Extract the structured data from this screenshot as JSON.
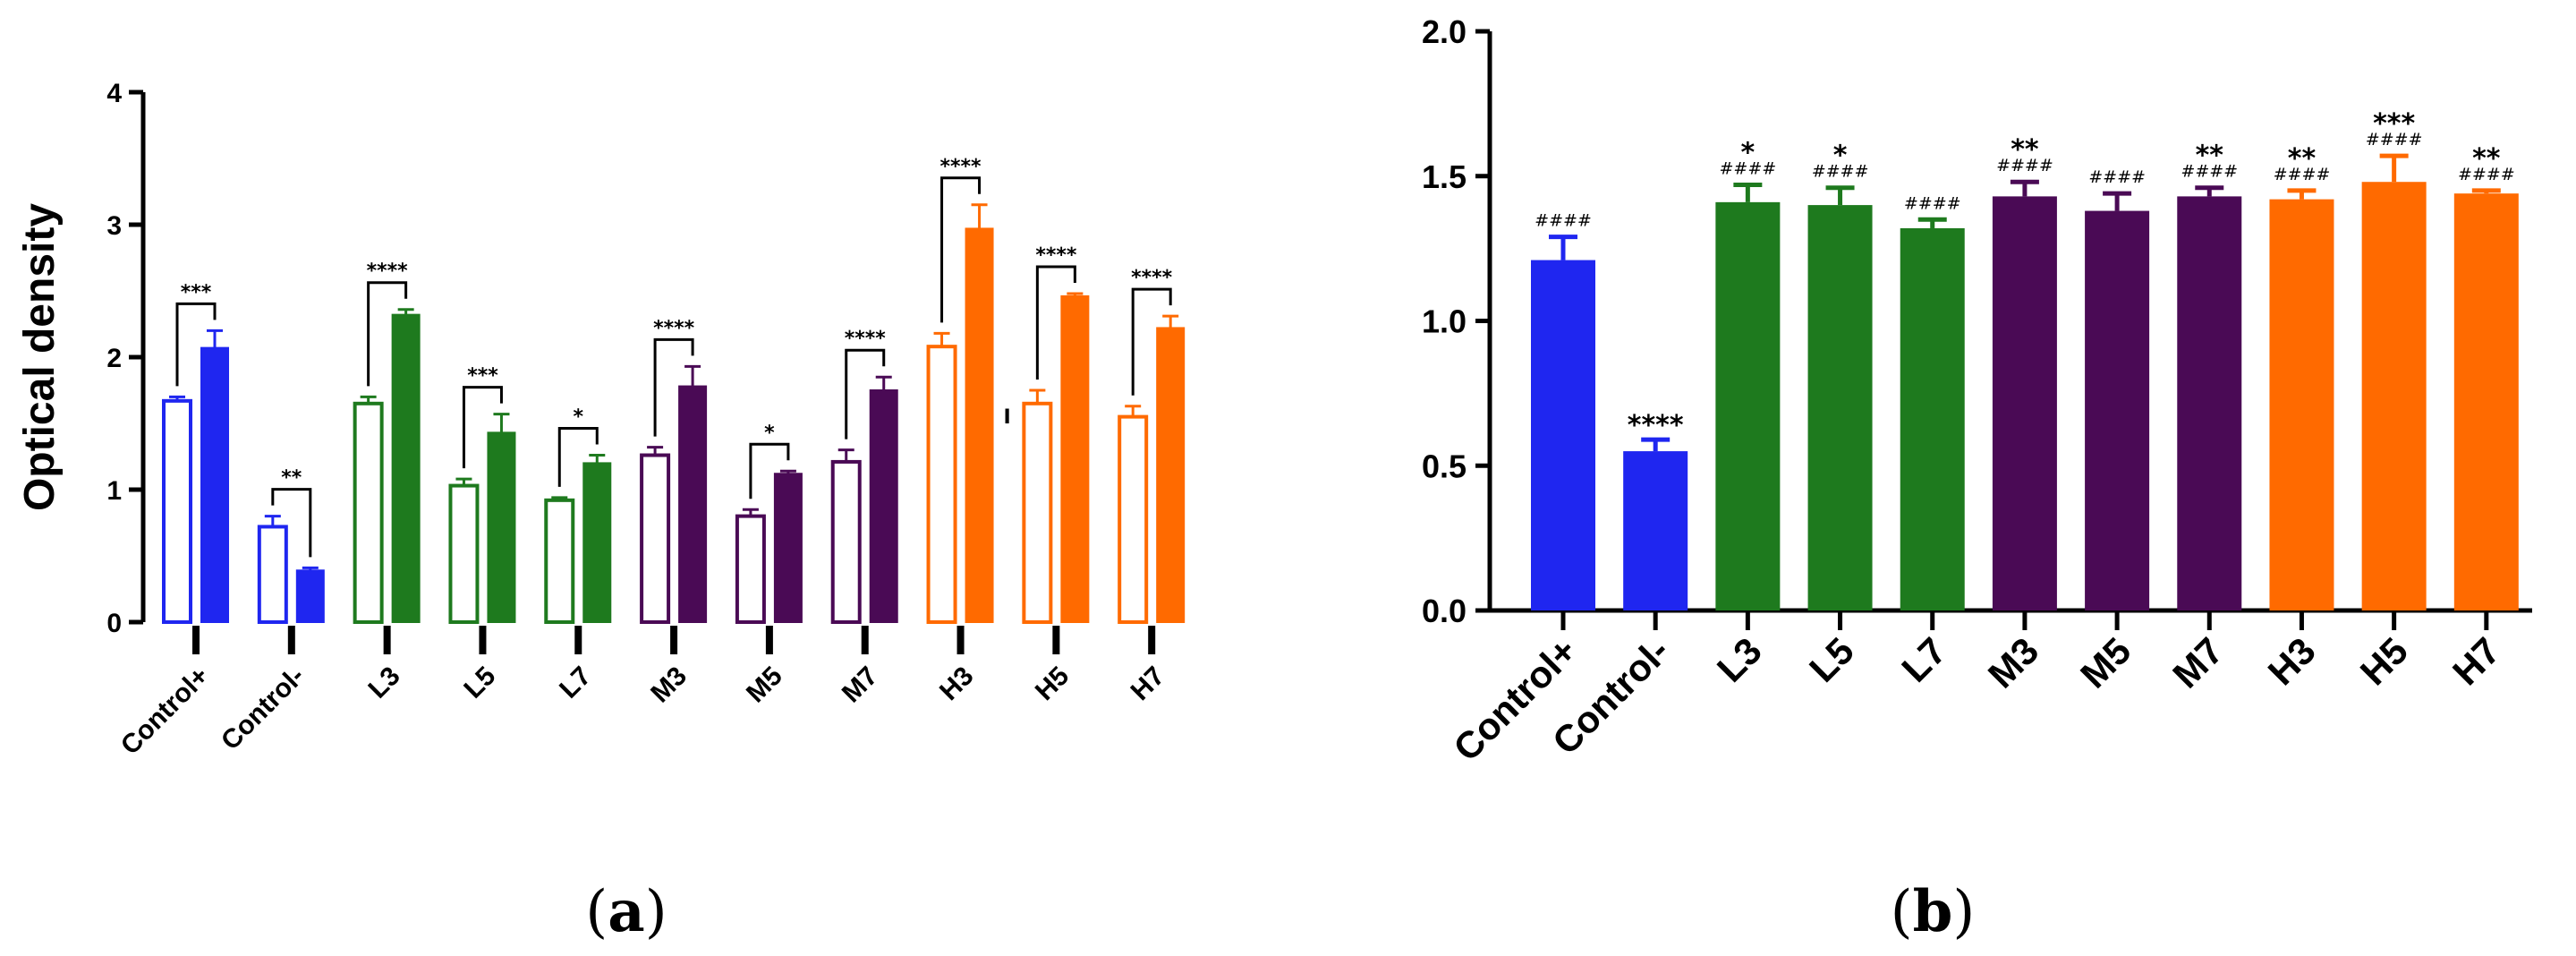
{
  "chart_data": [
    {
      "id": "a",
      "panel_label": "a",
      "type": "bar",
      "ylabel": "Optical density",
      "xlabel": "",
      "ylim": [
        0,
        4
      ],
      "yticks": [
        "0",
        "1",
        "2",
        "3",
        "4"
      ],
      "categories": [
        "Control+",
        "Control-",
        "L3",
        "L5",
        "L7",
        "M3",
        "M5",
        "M7",
        "H3",
        "H5",
        "H7"
      ],
      "group_colors": [
        "#1f26f0",
        "#1f26f0",
        "#1e7a1e",
        "#1e7a1e",
        "#1e7a1e",
        "#4a0a55",
        "#4a0a55",
        "#4a0a55",
        "#ff6a00",
        "#ff6a00",
        "#ff6a00"
      ],
      "series": [
        {
          "name": "open",
          "fill": "open",
          "values": [
            1.67,
            0.72,
            1.65,
            1.03,
            0.92,
            1.26,
            0.8,
            1.21,
            2.08,
            1.65,
            1.55
          ],
          "errors": [
            0.03,
            0.08,
            0.05,
            0.05,
            0.02,
            0.06,
            0.05,
            0.09,
            0.1,
            0.1,
            0.08
          ]
        },
        {
          "name": "filled",
          "fill": "filled",
          "values": [
            2.07,
            0.39,
            2.32,
            1.43,
            1.2,
            1.78,
            1.12,
            1.75,
            2.97,
            2.46,
            2.22
          ],
          "errors": [
            0.13,
            0.02,
            0.04,
            0.14,
            0.06,
            0.15,
            0.02,
            0.1,
            0.18,
            0.02,
            0.09
          ]
        }
      ],
      "brackets": [
        "***",
        "**",
        "****",
        "***",
        "*",
        "****",
        "*",
        "****",
        "****",
        "****",
        "****"
      ],
      "annotation": "I"
    },
    {
      "id": "b",
      "panel_label": "b",
      "type": "bar",
      "ylabel": "",
      "xlabel": "",
      "ylim": [
        0,
        2.0
      ],
      "yticks": [
        "0.0",
        "0.5",
        "1.0",
        "1.5",
        "2.0"
      ],
      "categories": [
        "Control+",
        "Control-",
        "L3",
        "L5",
        "L7",
        "M3",
        "M5",
        "M7",
        "H3",
        "H5",
        "H7"
      ],
      "colors": [
        "#1f26f0",
        "#1f26f0",
        "#1e7a1e",
        "#1e7a1e",
        "#1e7a1e",
        "#4a0a55",
        "#4a0a55",
        "#4a0a55",
        "#ff6a00",
        "#ff6a00",
        "#ff6a00"
      ],
      "values": [
        1.21,
        0.55,
        1.41,
        1.4,
        1.32,
        1.43,
        1.38,
        1.43,
        1.42,
        1.48,
        1.44
      ],
      "errors": [
        0.08,
        0.04,
        0.06,
        0.06,
        0.03,
        0.05,
        0.06,
        0.03,
        0.03,
        0.09,
        0.01
      ],
      "stars": [
        "",
        "****",
        "*",
        "*",
        "",
        "**",
        "",
        "**",
        "**",
        "***",
        "**"
      ],
      "hashes": [
        "####",
        "",
        "####",
        "####",
        "####",
        "####",
        "####",
        "####",
        "####",
        "####",
        "####"
      ]
    }
  ]
}
